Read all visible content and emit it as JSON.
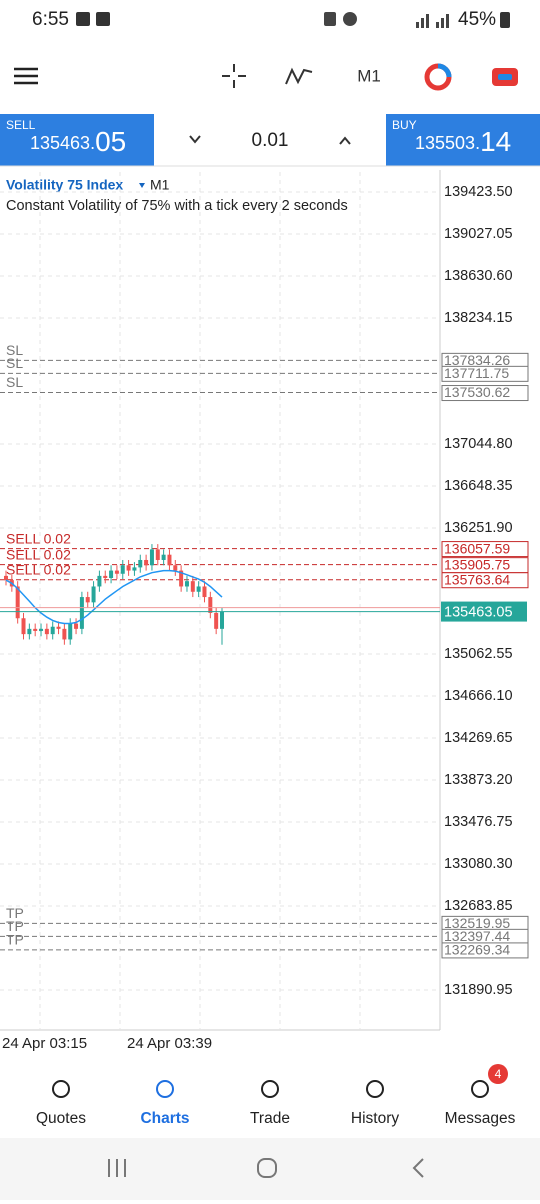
{
  "status_bar": {
    "time": "6:55",
    "battery": "45%"
  },
  "toolbar": {
    "timeframe": "M1"
  },
  "trade_panel": {
    "sell": {
      "label": "SELL",
      "price_main": "135463.",
      "price_big": "05"
    },
    "volume": "0.01",
    "buy": {
      "label": "BUY",
      "price_main": "135503.",
      "price_big": "14"
    }
  },
  "chart": {
    "symbol": "Volatility 75 Index",
    "timeframe": "M1",
    "description": "Constant Volatility of 75% with a tick every 2 seconds",
    "ylim": [
      131513.4,
      139612.3
    ],
    "yticks": [
      {
        "value": 139423.5,
        "label": "139423.50"
      },
      139027.05,
      {
        "value": 138630.6,
        "label": "138630.60"
      },
      138234.15,
      {
        "value": 137044.8,
        "label": "137044.80"
      },
      136648.35,
      {
        "value": 136251.9,
        "label": "136251.90"
      },
      135062.55,
      {
        "value": 134666.1,
        "label": "134666.10"
      },
      134269.65,
      {
        "value": 133873.2,
        "label": "133873.20"
      },
      133476.75,
      {
        "value": 133080.3,
        "label": "133080.30"
      },
      132683.85,
      131890.95
    ],
    "levels": [
      {
        "label": "SL",
        "value": 137834.26,
        "kind": "sl"
      },
      {
        "label": "SL",
        "value": 137711.75,
        "kind": "sl"
      },
      {
        "label": "SL",
        "value": 137530.62,
        "kind": "sl"
      },
      {
        "label": "SELL 0.02",
        "value": 136057.59,
        "kind": "sell"
      },
      {
        "label": "SELL 0.02",
        "value": 135905.75,
        "kind": "sell"
      },
      {
        "label": "SELL 0.02",
        "value": 135763.64,
        "kind": "sell"
      },
      {
        "label": "TP",
        "value": 132519.95,
        "kind": "tp"
      },
      {
        "label": "TP",
        "value": 132397.44,
        "kind": "tp"
      },
      {
        "label": "TP",
        "value": 132269.34,
        "kind": "tp"
      }
    ],
    "current_price": 135463.05,
    "xticks": [
      "24 Apr 03:15",
      "24 Apr 03:39"
    ],
    "candles": [
      [
        135800,
        135850,
        135710,
        135760
      ],
      [
        135760,
        135810,
        135650,
        135700
      ],
      [
        135700,
        135750,
        135350,
        135400
      ],
      [
        135400,
        135450,
        135200,
        135250
      ],
      [
        135250,
        135350,
        135200,
        135300
      ],
      [
        135300,
        135350,
        135230,
        135280
      ],
      [
        135280,
        135350,
        135230,
        135300
      ],
      [
        135300,
        135350,
        135200,
        135250
      ],
      [
        135250,
        135370,
        135200,
        135320
      ],
      [
        135320,
        135370,
        135250,
        135300
      ],
      [
        135300,
        135350,
        135150,
        135200
      ],
      [
        135200,
        135400,
        135150,
        135350
      ],
      [
        135350,
        135400,
        135250,
        135300
      ],
      [
        135300,
        135650,
        135250,
        135600
      ],
      [
        135600,
        135650,
        135500,
        135550
      ],
      [
        135550,
        135750,
        135500,
        135700
      ],
      [
        135700,
        135850,
        135650,
        135800
      ],
      [
        135800,
        135850,
        135730,
        135780
      ],
      [
        135780,
        135900,
        135730,
        135850
      ],
      [
        135850,
        135900,
        135770,
        135820
      ],
      [
        135820,
        135950,
        135770,
        135900
      ],
      [
        135900,
        135950,
        135800,
        135850
      ],
      [
        135850,
        135930,
        135800,
        135880
      ],
      [
        135880,
        136000,
        135830,
        135950
      ],
      [
        135950,
        136000,
        135850,
        135900
      ],
      [
        135900,
        136100,
        135850,
        136050
      ],
      [
        136050,
        136100,
        135900,
        135950
      ],
      [
        135950,
        136050,
        135900,
        136000
      ],
      [
        136000,
        136050,
        135850,
        135900
      ],
      [
        135900,
        135950,
        135800,
        135850
      ],
      [
        135850,
        135900,
        135650,
        135700
      ],
      [
        135700,
        135800,
        135650,
        135750
      ],
      [
        135750,
        135800,
        135600,
        135650
      ],
      [
        135650,
        135750,
        135600,
        135700
      ],
      [
        135700,
        135750,
        135550,
        135600
      ],
      [
        135600,
        135650,
        135400,
        135450
      ],
      [
        135450,
        135500,
        135250,
        135300
      ],
      [
        135300,
        135500,
        135150,
        135463.05
      ]
    ],
    "ma": [
      135760,
      135730,
      135680,
      135620,
      135560,
      135500,
      135450,
      135410,
      135380,
      135360,
      135350,
      135350,
      135360,
      135390,
      135430,
      135480,
      135530,
      135580,
      135620,
      135660,
      135700,
      135730,
      135760,
      135790,
      135810,
      135830,
      135840,
      135850,
      135850,
      135845,
      135830,
      135810,
      135790,
      135770,
      135740,
      135700,
      135650,
      135600
    ]
  },
  "nav": {
    "items": [
      "Quotes",
      "Charts",
      "Trade",
      "History",
      "Messages"
    ],
    "badge": "4"
  }
}
